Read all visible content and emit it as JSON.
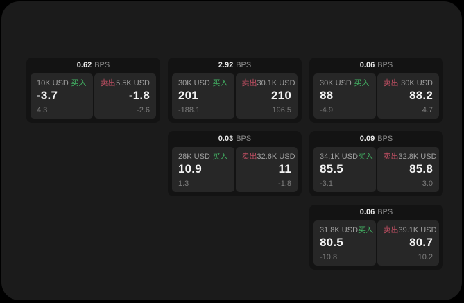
{
  "labels": {
    "bps": "BPS",
    "buy": "买入",
    "sell": "卖出"
  },
  "colors": {
    "backdrop": "#000000",
    "window_bg": "#1b1b1b",
    "card_bg": "#131313",
    "panel_bg": "#272727",
    "buy_green": "#42b163",
    "sell_red": "#c04f63",
    "value_white": "#f4f4f4",
    "label_gray": "#a0a0a0",
    "sub_gray": "#7d7d7d"
  },
  "cards": [
    {
      "col": 1,
      "row": 1,
      "bps": "0.62",
      "buy": {
        "amount": "10K USD",
        "main": "-3.7",
        "sub": "4.3"
      },
      "sell": {
        "amount": "5.5K USD",
        "main": "-1.8",
        "sub": "-2.6"
      }
    },
    {
      "col": 2,
      "row": 1,
      "bps": "2.92",
      "buy": {
        "amount": "30K USD",
        "main": "201",
        "sub": "-188.1"
      },
      "sell": {
        "amount": "30.1K USD",
        "main": "210",
        "sub": "196.5"
      }
    },
    {
      "col": 3,
      "row": 1,
      "bps": "0.06",
      "buy": {
        "amount": "30K USD",
        "main": "88",
        "sub": "-4.9"
      },
      "sell": {
        "amount": "30K USD",
        "main": "88.2",
        "sub": "4.7"
      }
    },
    {
      "col": 2,
      "row": 2,
      "bps": "0.03",
      "buy": {
        "amount": "28K USD",
        "main": "10.9",
        "sub": "1.3"
      },
      "sell": {
        "amount": "32.6K USD",
        "main": "11",
        "sub": "-1.8"
      }
    },
    {
      "col": 3,
      "row": 2,
      "bps": "0.09",
      "buy": {
        "amount": "34.1K USD",
        "main": "85.5",
        "sub": "-3.1"
      },
      "sell": {
        "amount": "32.8K USD",
        "main": "85.8",
        "sub": "3.0"
      }
    },
    {
      "col": 3,
      "row": 3,
      "bps": "0.06",
      "buy": {
        "amount": "31.8K USD",
        "main": "80.5",
        "sub": "-10.8"
      },
      "sell": {
        "amount": "39.1K USD",
        "main": "80.7",
        "sub": "10.2"
      }
    }
  ]
}
